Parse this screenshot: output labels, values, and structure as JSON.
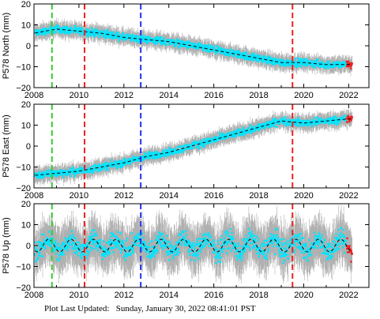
{
  "chart_data": [
    {
      "type": "scatter",
      "ylabel": "P578 North (mm)",
      "xlim": [
        2008,
        2022.9
      ],
      "ylim": [
        -20,
        20
      ],
      "xticks": [
        "2008",
        "2010",
        "2012",
        "2014",
        "2016",
        "2018",
        "2020",
        "2022"
      ],
      "yticks": [
        "20",
        "10",
        "0",
        "−10",
        "−20"
      ],
      "trend": {
        "x": [
          2008.0,
          2009.0,
          2010.0,
          2011.0,
          2012.0,
          2013.0,
          2014.0,
          2015.0,
          2016.0,
          2017.0,
          2018.0,
          2019.0,
          2020.0,
          2021.0,
          2022.0
        ],
        "y": [
          6,
          8,
          7,
          6,
          4,
          3,
          2,
          0,
          -2,
          -4,
          -6,
          -8,
          -8,
          -9,
          -9
        ]
      },
      "markers": [
        {
          "x": 2008.8,
          "color": "#33cc33"
        },
        {
          "x": 2010.25,
          "color": "#ee2222"
        },
        {
          "x": 2012.75,
          "color": "#2233ee"
        },
        {
          "x": 2019.5,
          "color": "#ee2222"
        }
      ]
    },
    {
      "type": "scatter",
      "ylabel": "P578 East (mm)",
      "xlim": [
        2008,
        2022.9
      ],
      "ylim": [
        -20,
        20
      ],
      "xticks": [
        "2008",
        "2010",
        "2012",
        "2014",
        "2016",
        "2018",
        "2020",
        "2022"
      ],
      "yticks": [
        "20",
        "10",
        "0",
        "−10",
        "−20"
      ],
      "trend": {
        "x": [
          2008.0,
          2009.0,
          2010.0,
          2011.0,
          2012.0,
          2013.0,
          2014.0,
          2015.0,
          2016.0,
          2017.0,
          2018.0,
          2019.0,
          2020.0,
          2021.0,
          2022.0
        ],
        "y": [
          -14,
          -13,
          -12,
          -10,
          -8,
          -5,
          -3,
          0,
          3,
          6,
          9,
          12,
          11,
          12,
          13
        ]
      },
      "markers": [
        {
          "x": 2008.8,
          "color": "#33cc33"
        },
        {
          "x": 2010.25,
          "color": "#ee2222"
        },
        {
          "x": 2012.75,
          "color": "#2233ee"
        },
        {
          "x": 2019.5,
          "color": "#ee2222"
        }
      ]
    },
    {
      "type": "scatter",
      "ylabel": "P578 Up (mm)",
      "xlim": [
        2008,
        2022.9
      ],
      "ylim": [
        -20,
        20
      ],
      "xticks": [
        "2008",
        "2010",
        "2012",
        "2014",
        "2016",
        "2018",
        "2020",
        "2022"
      ],
      "yticks": [
        "20",
        "10",
        "0",
        "−10",
        "−20"
      ],
      "trend": {
        "seasonal_amplitude": 3,
        "period_years": 1,
        "offset": 0
      },
      "markers": [
        {
          "x": 2008.8,
          "color": "#33cc33"
        },
        {
          "x": 2010.25,
          "color": "#ee2222"
        },
        {
          "x": 2012.75,
          "color": "#2233ee"
        },
        {
          "x": 2019.5,
          "color": "#ee2222"
        }
      ]
    }
  ],
  "colors": {
    "points": "#00e5ff",
    "errorbars": "#b0b0b0",
    "trend": "#000000",
    "recent": "#ee2222"
  },
  "footer": {
    "label": "Plot Last Updated:",
    "timestamp": "Sunday, January 30, 2022 08:41:01 PST"
  }
}
